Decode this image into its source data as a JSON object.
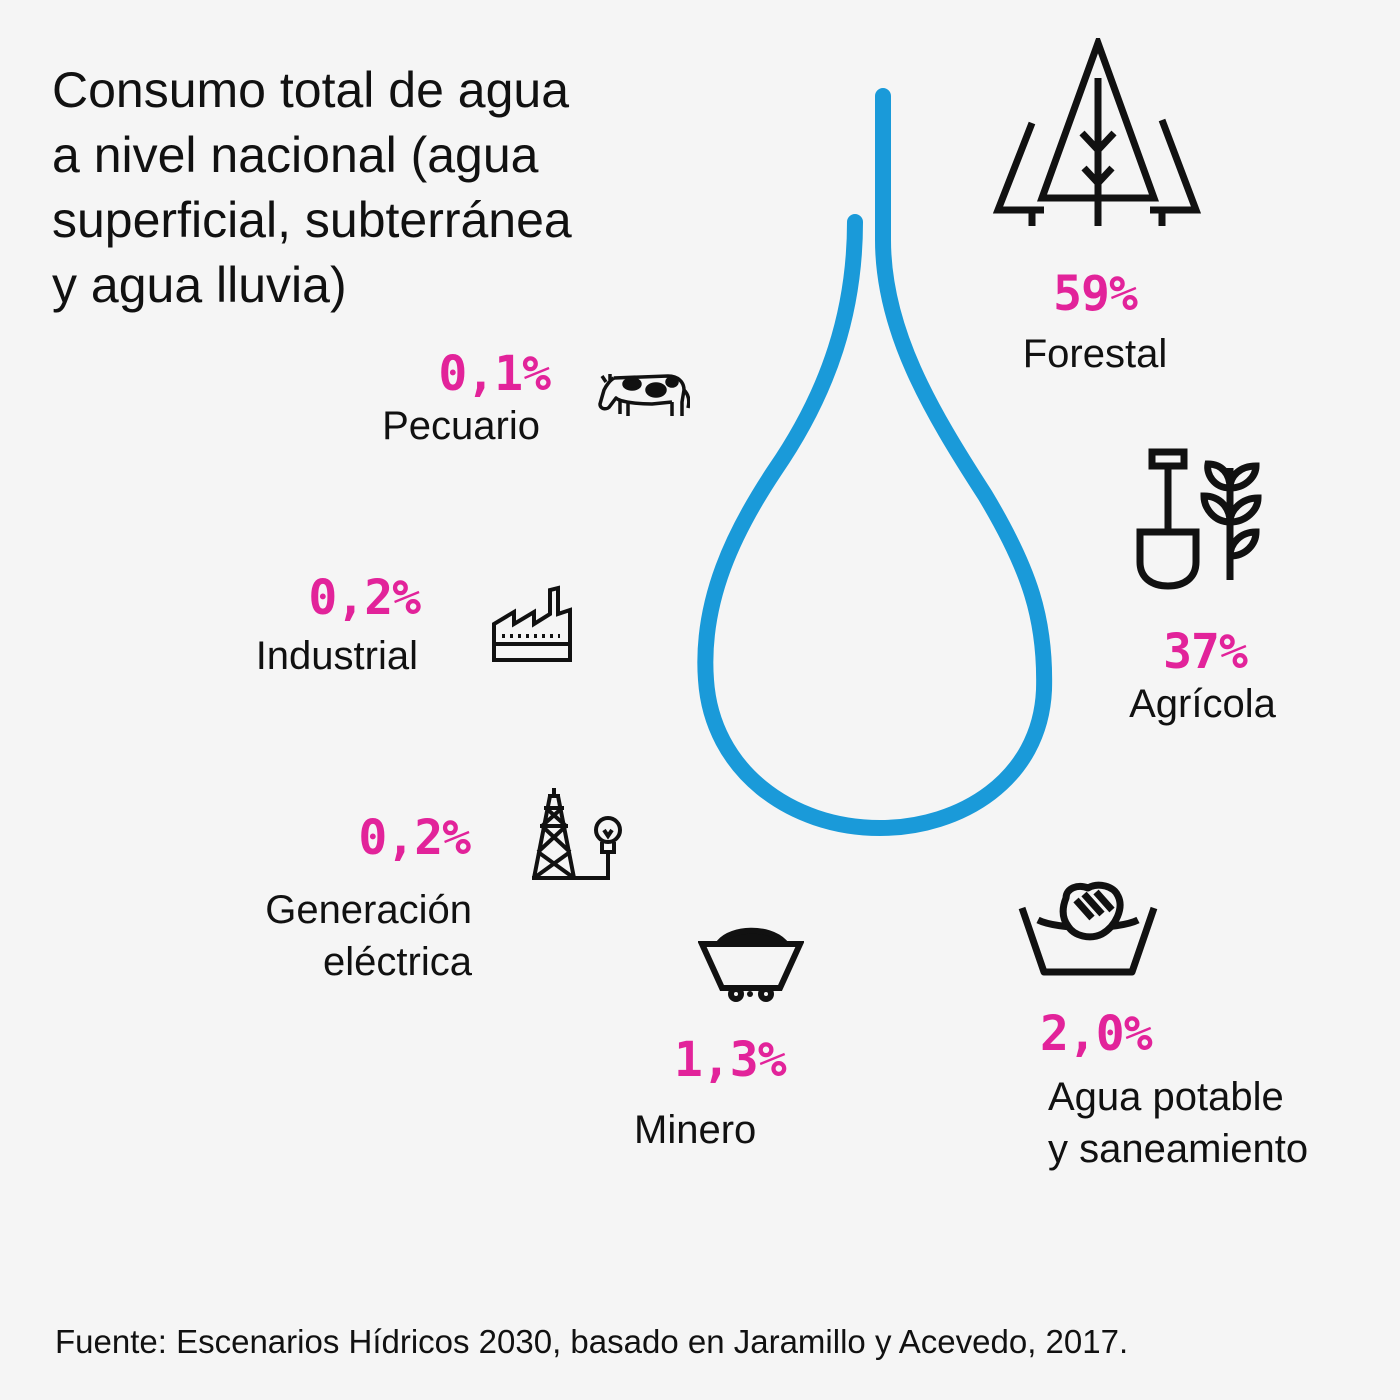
{
  "title": {
    "lines": [
      "Consumo total de agua",
      "a nivel nacional (agua",
      "superficial, subterránea",
      "y agua lluvia)"
    ]
  },
  "sectors": {
    "forestal": {
      "percent": "59%",
      "label": "Forestal",
      "icon": "trees-icon"
    },
    "agricola": {
      "percent": "37%",
      "label": "Agrícola",
      "icon": "shovel-plant-icon"
    },
    "agua_potable": {
      "percent": "2,0%",
      "label_lines": [
        "Agua potable",
        "y saneamiento"
      ],
      "icon": "washbasin-hands-icon"
    },
    "minero": {
      "percent": "1,3%",
      "label": "Minero",
      "icon": "mine-cart-icon"
    },
    "generacion": {
      "percent": "0,2%",
      "label_lines": [
        "Generación",
        "eléctrica"
      ],
      "icon": "power-tower-bulb-icon"
    },
    "industrial": {
      "percent": "0,2%",
      "label": "Industrial",
      "icon": "factory-icon"
    },
    "pecuario": {
      "percent": "0,1%",
      "label": "Pecuario",
      "icon": "cow-icon"
    }
  },
  "colors": {
    "accent": "#e2239a",
    "drop": "#1a9ad9",
    "text": "#111111",
    "background": "#f5f5f5"
  },
  "source": "Fuente: Escenarios Hídricos 2030, basado en Jaramillo y Acevedo, 2017."
}
